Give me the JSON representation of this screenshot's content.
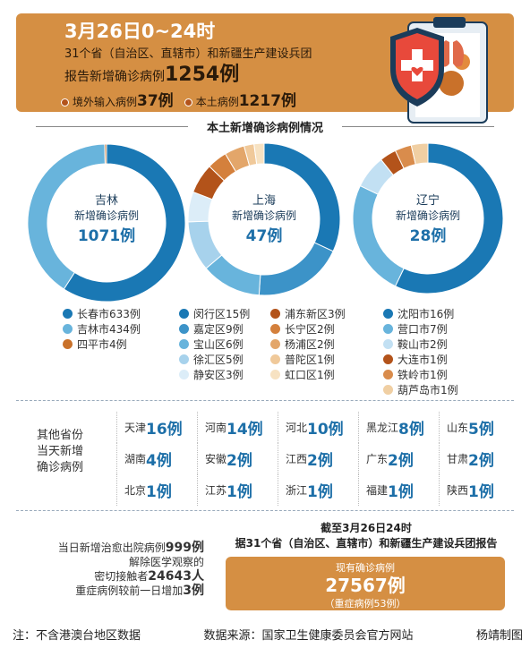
{
  "banner": {
    "date": "3月26日0~24时",
    "line2": "31个省（自治区、直辖市）和新疆生产建设兵团",
    "line3_prefix": "报告新增确诊病例",
    "total": "1254例",
    "imported_label": "境外输入病例",
    "imported": "37例",
    "local_label": "本土病例",
    "local": "1217例"
  },
  "section_title": "本土新增确诊病例情况",
  "donuts": [
    {
      "province": "吉林",
      "subtitle": "新增确诊病例",
      "count": "1071例",
      "slices": [
        {
          "label": "长春市633例",
          "value": 633,
          "color": "#1a78b4"
        },
        {
          "label": "吉林市434例",
          "value": 434,
          "color": "#68b4dc"
        },
        {
          "label": "四平市4例",
          "value": 4,
          "color": "#c9712a"
        }
      ]
    },
    {
      "province": "上海",
      "subtitle": "新增确诊病例",
      "count": "47例",
      "slices": [
        {
          "label": "闵行区15例",
          "value": 15,
          "color": "#1a78b4"
        },
        {
          "label": "嘉定区9例",
          "value": 9,
          "color": "#3c93c8"
        },
        {
          "label": "宝山区6例",
          "value": 6,
          "color": "#68b4dc"
        },
        {
          "label": "徐汇区5例",
          "value": 5,
          "color": "#a7d2ec"
        },
        {
          "label": "静安区3例",
          "value": 3,
          "color": "#dcedf8"
        },
        {
          "label": "浦东新区3例",
          "value": 3,
          "color": "#b3531a"
        },
        {
          "label": "长宁区2例",
          "value": 2,
          "color": "#d4803c"
        },
        {
          "label": "杨浦区2例",
          "value": 2,
          "color": "#e3a66a"
        },
        {
          "label": "普陀区1例",
          "value": 1,
          "color": "#f0c99a"
        },
        {
          "label": "虹口区1例",
          "value": 1,
          "color": "#f7e2c2"
        }
      ]
    },
    {
      "province": "辽宁",
      "subtitle": "新增确诊病例",
      "count": "28例",
      "slices": [
        {
          "label": "沈阳市16例",
          "value": 16,
          "color": "#1a78b4"
        },
        {
          "label": "营口市7例",
          "value": 7,
          "color": "#68b4dc"
        },
        {
          "label": "鞍山市2例",
          "value": 2,
          "color": "#c2e0f3"
        },
        {
          "label": "大连市1例",
          "value": 1,
          "color": "#b3531a"
        },
        {
          "label": "铁岭市1例",
          "value": 1,
          "color": "#d98c4c"
        },
        {
          "label": "葫芦岛市1例",
          "value": 1,
          "color": "#f0cfa3"
        }
      ]
    }
  ],
  "other": {
    "label_lines": [
      "其他省份",
      "当天新增",
      "确诊病例"
    ],
    "cells": [
      {
        "name": "天津",
        "num": "16例"
      },
      {
        "name": "河南",
        "num": "14例"
      },
      {
        "name": "河北",
        "num": "10例"
      },
      {
        "name": "黑龙江",
        "num": "8例"
      },
      {
        "name": "山东",
        "num": "5例"
      },
      {
        "name": "湖南",
        "num": "4例"
      },
      {
        "name": "安徽",
        "num": "2例"
      },
      {
        "name": "江西",
        "num": "2例"
      },
      {
        "name": "广东",
        "num": "2例"
      },
      {
        "name": "甘肃",
        "num": "2例"
      },
      {
        "name": "北京",
        "num": "1例"
      },
      {
        "name": "江苏",
        "num": "1例"
      },
      {
        "name": "浙江",
        "num": "1例"
      },
      {
        "name": "福建",
        "num": "1例"
      },
      {
        "name": "陕西",
        "num": "1例"
      }
    ]
  },
  "bottom_left": {
    "l1_pre": "当日新增治愈出院病例",
    "l1_num": "999例",
    "l2": "解除医学观察的",
    "l3_pre": "密切接触者",
    "l3_num": "24643人",
    "l4_pre": "重症病例较前一日增加",
    "l4_num": "3例"
  },
  "bottom_right": {
    "title1": "截至3月26日24时",
    "title2": "据31个省（自治区、直辖市）和新疆生产建设兵团报告",
    "box_label": "现有确诊病例",
    "box_num": "27567例",
    "box_sub": "（重症病例53例）"
  },
  "footer": {
    "note": "注：不含港澳台地区数据",
    "source": "数据来源：国家卫生健康委员会官方网站",
    "author": "杨靖制图"
  }
}
